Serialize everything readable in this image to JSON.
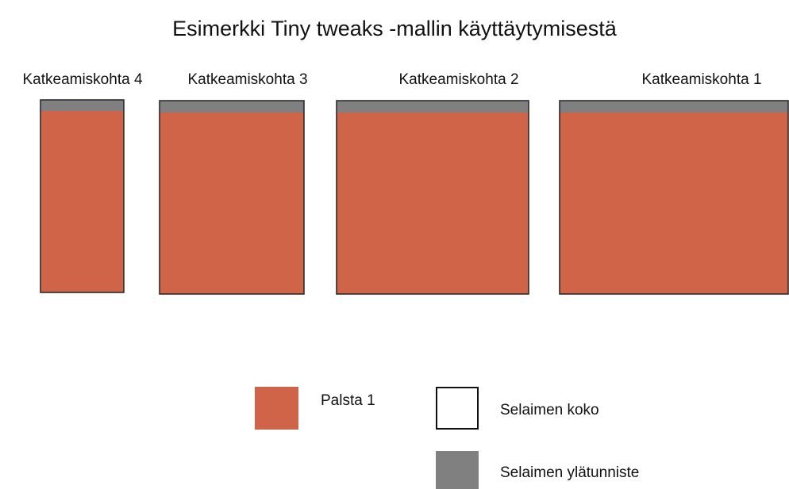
{
  "title": "Esimerkki Tiny tweaks -mallin käyttäytymisestä",
  "breakpoints": [
    {
      "label": "Katkeamiskohta 4"
    },
    {
      "label": "Katkeamiskohta 3"
    },
    {
      "label": "Katkeamiskohta 2"
    },
    {
      "label": "Katkeamiskohta 1"
    }
  ],
  "legend": [
    {
      "label": "Palsta 1"
    },
    {
      "label": "Selaimen koko"
    },
    {
      "label": "Selaimen ylätunniste"
    }
  ]
}
